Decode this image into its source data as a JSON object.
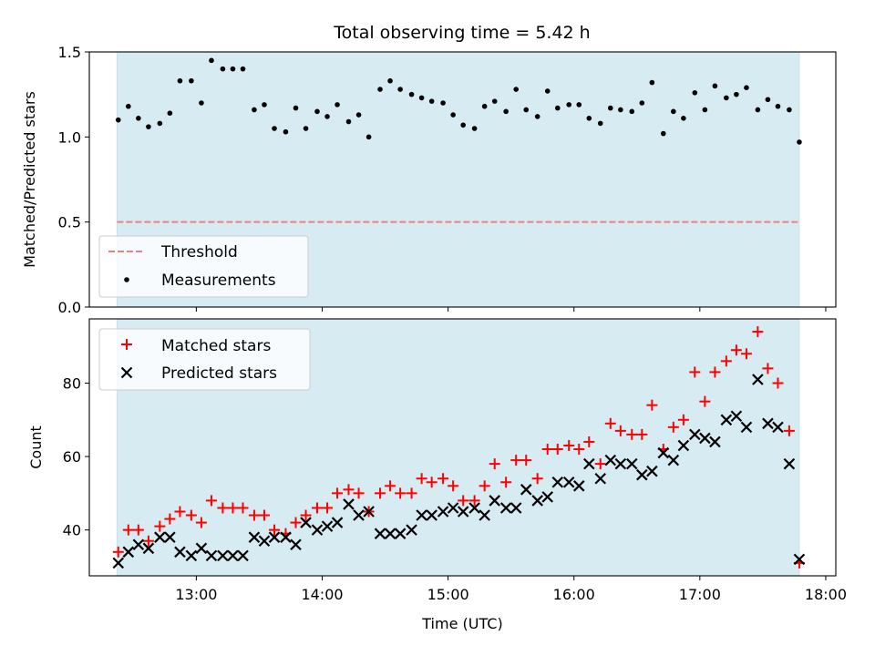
{
  "figure": {
    "title": "Total observing time = 5.42 h"
  },
  "chart_data": [
    {
      "type": "scatter",
      "ylabel": "Matched/Predicted stars",
      "xlim": [
        12.15,
        18.08
      ],
      "ylim": [
        0.0,
        1.5
      ],
      "yticks": [
        0.0,
        0.5,
        1.0,
        1.5
      ],
      "ytick_labels": [
        "0.0",
        "0.5",
        "1.0",
        "1.5"
      ],
      "shaded_span": [
        12.37,
        17.79
      ],
      "threshold": {
        "name": "Threshold",
        "value": 0.5,
        "color": "#f08080"
      },
      "legend": {
        "placement": "lower-left",
        "entries": [
          "Threshold",
          "Measurements"
        ]
      },
      "series": [
        {
          "name": "Measurements",
          "color": "#000000",
          "x": [
            12.38,
            12.46,
            12.54,
            12.62,
            12.71,
            12.79,
            12.87,
            12.96,
            13.04,
            13.12,
            13.21,
            13.29,
            13.37,
            13.46,
            13.54,
            13.62,
            13.71,
            13.79,
            13.87,
            13.96,
            14.04,
            14.12,
            14.21,
            14.29,
            14.37,
            14.46,
            14.54,
            14.62,
            14.71,
            14.79,
            14.87,
            14.96,
            15.04,
            15.12,
            15.21,
            15.29,
            15.37,
            15.46,
            15.54,
            15.62,
            15.71,
            15.79,
            15.87,
            15.96,
            16.04,
            16.12,
            16.21,
            16.29,
            16.37,
            16.46,
            16.54,
            16.62,
            16.71,
            16.79,
            16.87,
            16.96,
            17.04,
            17.12,
            17.21,
            17.29,
            17.37,
            17.46,
            17.54,
            17.62,
            17.71,
            17.79
          ],
          "y": [
            1.1,
            1.18,
            1.11,
            1.06,
            1.08,
            1.14,
            1.33,
            1.33,
            1.2,
            1.45,
            1.4,
            1.4,
            1.4,
            1.16,
            1.19,
            1.05,
            1.03,
            1.17,
            1.05,
            1.15,
            1.12,
            1.19,
            1.09,
            1.13,
            1.0,
            1.28,
            1.33,
            1.28,
            1.25,
            1.23,
            1.21,
            1.2,
            1.13,
            1.07,
            1.05,
            1.18,
            1.21,
            1.15,
            1.28,
            1.16,
            1.12,
            1.27,
            1.17,
            1.19,
            1.19,
            1.11,
            1.08,
            1.17,
            1.16,
            1.15,
            1.2,
            1.32,
            1.02,
            1.15,
            1.11,
            1.26,
            1.16,
            1.3,
            1.23,
            1.25,
            1.29,
            1.16,
            1.22,
            1.18,
            1.16,
            0.97
          ]
        }
      ]
    },
    {
      "type": "scatter",
      "xlabel": "Time (UTC)",
      "ylabel": "Count",
      "xlim": [
        12.15,
        18.08
      ],
      "ylim": [
        27.5,
        97.5
      ],
      "yticks": [
        40,
        60,
        80
      ],
      "ytick_labels": [
        "40",
        "60",
        "80"
      ],
      "xticks": [
        13,
        14,
        15,
        16,
        17,
        18
      ],
      "xtick_labels": [
        "13:00",
        "14:00",
        "15:00",
        "16:00",
        "17:00",
        "18:00"
      ],
      "shaded_span": [
        12.37,
        17.79
      ],
      "legend": {
        "placement": "upper-left",
        "entries": [
          "Matched stars",
          "Predicted stars"
        ]
      },
      "series": [
        {
          "name": "Matched stars",
          "marker": "plus",
          "color": "#ff0000",
          "x": [
            12.38,
            12.46,
            12.54,
            12.62,
            12.71,
            12.79,
            12.87,
            12.96,
            13.04,
            13.12,
            13.21,
            13.29,
            13.37,
            13.46,
            13.54,
            13.62,
            13.71,
            13.79,
            13.87,
            13.96,
            14.04,
            14.12,
            14.21,
            14.29,
            14.37,
            14.46,
            14.54,
            14.62,
            14.71,
            14.79,
            14.87,
            14.96,
            15.04,
            15.12,
            15.21,
            15.29,
            15.37,
            15.46,
            15.54,
            15.62,
            15.71,
            15.79,
            15.87,
            15.96,
            16.04,
            16.12,
            16.21,
            16.29,
            16.37,
            16.46,
            16.54,
            16.62,
            16.71,
            16.79,
            16.87,
            16.96,
            17.04,
            17.12,
            17.21,
            17.29,
            17.37,
            17.46,
            17.54,
            17.62,
            17.71,
            17.79
          ],
          "y": [
            34,
            40,
            40,
            37,
            41,
            43,
            45,
            44,
            42,
            48,
            46,
            46,
            46,
            44,
            44,
            40,
            39,
            42,
            44,
            46,
            46,
            50,
            51,
            50,
            45,
            50,
            52,
            50,
            50,
            54,
            53,
            54,
            52,
            48,
            48,
            52,
            58,
            53,
            59,
            59,
            54,
            62,
            62,
            63,
            62,
            64,
            58,
            69,
            67,
            66,
            66,
            74,
            62,
            68,
            70,
            83,
            75,
            83,
            86,
            89,
            88,
            94,
            84,
            80,
            67,
            31
          ]
        },
        {
          "name": "Predicted stars",
          "marker": "x",
          "color": "#000000",
          "x": [
            12.38,
            12.46,
            12.54,
            12.62,
            12.71,
            12.79,
            12.87,
            12.96,
            13.04,
            13.12,
            13.21,
            13.29,
            13.37,
            13.46,
            13.54,
            13.62,
            13.71,
            13.79,
            13.87,
            13.96,
            14.04,
            14.12,
            14.21,
            14.29,
            14.37,
            14.46,
            14.54,
            14.62,
            14.71,
            14.79,
            14.87,
            14.96,
            15.04,
            15.12,
            15.21,
            15.29,
            15.37,
            15.46,
            15.54,
            15.62,
            15.71,
            15.79,
            15.87,
            15.96,
            16.04,
            16.12,
            16.21,
            16.29,
            16.37,
            16.46,
            16.54,
            16.62,
            16.71,
            16.79,
            16.87,
            16.96,
            17.04,
            17.12,
            17.21,
            17.29,
            17.37,
            17.46,
            17.54,
            17.62,
            17.71,
            17.79
          ],
          "y": [
            31,
            34,
            36,
            35,
            38,
            38,
            34,
            33,
            35,
            33,
            33,
            33,
            33,
            38,
            37,
            38,
            38,
            36,
            42,
            40,
            41,
            42,
            47,
            44,
            45,
            39,
            39,
            39,
            40,
            44,
            44,
            45,
            46,
            45,
            46,
            44,
            48,
            46,
            46,
            51,
            48,
            49,
            53,
            53,
            52,
            58,
            54,
            59,
            58,
            58,
            55,
            56,
            61,
            59,
            63,
            66,
            65,
            64,
            70,
            71,
            68,
            81,
            69,
            68,
            58,
            32
          ]
        }
      ]
    }
  ]
}
